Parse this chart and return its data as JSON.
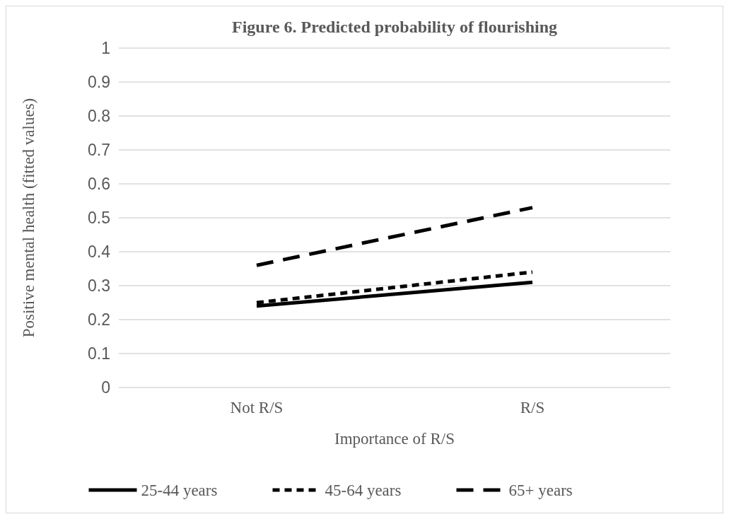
{
  "chart_data": {
    "type": "line",
    "title": "Figure 6. Predicted probability of flourishing",
    "xlabel": "Importance of R/S",
    "ylabel": "Positive mental health (fitted values)",
    "categories": [
      "Not R/S",
      "R/S"
    ],
    "series": [
      {
        "name": "25-44 years",
        "color": "#000000",
        "line_style": "solid",
        "values": [
          0.24,
          0.31
        ]
      },
      {
        "name": "45-64 years",
        "color": "#000000",
        "line_style": "dotted",
        "values": [
          0.25,
          0.34
        ]
      },
      {
        "name": "65+ years",
        "color": "#000000",
        "line_style": "dashed",
        "values": [
          0.36,
          0.53
        ]
      }
    ],
    "ylim": [
      0,
      1
    ],
    "yticks": [
      0,
      0.1,
      0.2,
      0.3,
      0.4,
      0.5,
      0.6,
      0.7,
      0.8,
      0.9,
      1
    ],
    "grid": "y",
    "legend": "bottom",
    "marker": "none"
  }
}
